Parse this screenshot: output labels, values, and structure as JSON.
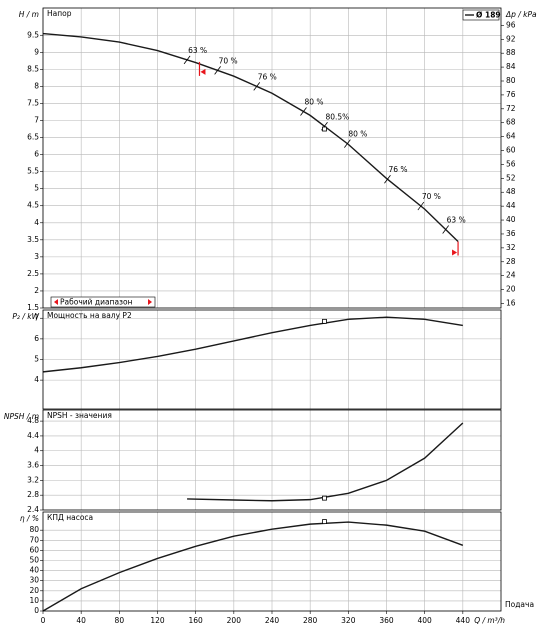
{
  "chart_data": [
    {
      "type": "line",
      "title": "Напор",
      "y_label": "H / m",
      "y2_label": "Δp / kPa",
      "xlim": [
        0,
        480
      ],
      "ylim": [
        1.5,
        10.3
      ],
      "yticks": [
        1.5,
        2,
        2.5,
        3,
        3.5,
        4,
        4.5,
        5,
        5.5,
        6,
        6.5,
        7,
        7.5,
        8,
        8.5,
        9,
        9.5
      ],
      "y2lim": [
        14.7,
        101
      ],
      "y2ticks": [
        16,
        20,
        24,
        28,
        32,
        36,
        40,
        44,
        48,
        52,
        56,
        60,
        64,
        68,
        72,
        76,
        80,
        84,
        88,
        92,
        96
      ],
      "grid": true,
      "legend": "upper right",
      "series": [
        {
          "name": "Ø 189",
          "color": "#1a1a1a",
          "x": [
            0,
            40,
            80,
            120,
            160,
            200,
            240,
            280,
            320,
            360,
            400,
            435
          ],
          "values": [
            9.55,
            9.45,
            9.3,
            9.05,
            8.7,
            8.3,
            7.8,
            7.15,
            6.3,
            5.3,
            4.4,
            3.45
          ]
        }
      ],
      "duty_point": {
        "x": 295,
        "y": 6.75
      },
      "efficiency_marks": [
        {
          "x": 151,
          "label": "63 %"
        },
        {
          "x": 183,
          "label": "70 %"
        },
        {
          "x": 224,
          "label": "76 %"
        },
        {
          "x": 273,
          "label": "80 %"
        },
        {
          "x": 295,
          "label": "80.5%"
        },
        {
          "x": 319,
          "label": "80 %"
        },
        {
          "x": 361,
          "label": "76 %"
        },
        {
          "x": 396,
          "label": "70 %"
        },
        {
          "x": 422,
          "label": "63 %"
        }
      ],
      "operating_range": {
        "label": "Рабочий диапазон",
        "from": 164,
        "to": 435,
        "color": "#e8141b"
      }
    },
    {
      "type": "line",
      "title": "Мощность на валу P2",
      "y_label": "P₂ / kW",
      "xlim": [
        0,
        480
      ],
      "ylim": [
        2.6,
        7.4
      ],
      "yticks": [
        4,
        5,
        6,
        7
      ],
      "grid": true,
      "series": [
        {
          "name": "Ø 189",
          "color": "#1a1a1a",
          "x": [
            0,
            40,
            80,
            120,
            160,
            200,
            240,
            280,
            320,
            360,
            400,
            440
          ],
          "values": [
            4.4,
            4.6,
            4.85,
            5.15,
            5.5,
            5.9,
            6.3,
            6.65,
            6.95,
            7.05,
            6.95,
            6.65
          ]
        }
      ],
      "duty_point": {
        "x": 295,
        "y": 6.85
      }
    },
    {
      "type": "line",
      "title": "NPSH - значения",
      "y_label": "NPSH / m",
      "xlim": [
        0,
        480
      ],
      "ylim": [
        2.4,
        5.1
      ],
      "yticks": [
        2.4,
        2.8,
        3.2,
        3.6,
        4,
        4.4,
        4.8
      ],
      "grid": true,
      "series": [
        {
          "name": "Ø 189",
          "color": "#1a1a1a",
          "x": [
            151,
            200,
            240,
            280,
            320,
            360,
            400,
            440
          ],
          "values": [
            2.7,
            2.67,
            2.65,
            2.68,
            2.85,
            3.2,
            3.8,
            4.75
          ]
        }
      ],
      "duty_point": {
        "x": 295,
        "y": 2.72
      }
    },
    {
      "type": "line",
      "title": "КПД насоса",
      "y_label": "η / %",
      "x_label": "Q / m³/h",
      "x_caption": "Подача",
      "xlim": [
        0,
        480
      ],
      "ylim": [
        0,
        98
      ],
      "yticks": [
        0,
        10,
        20,
        30,
        40,
        50,
        60,
        70,
        80
      ],
      "xticks": [
        0,
        40,
        80,
        120,
        160,
        200,
        240,
        280,
        320,
        360,
        400,
        440
      ],
      "grid": true,
      "series": [
        {
          "name": "Ø 189",
          "color": "#1a1a1a",
          "x": [
            0,
            40,
            80,
            120,
            160,
            200,
            240,
            280,
            320,
            360,
            400,
            440
          ],
          "values": [
            0,
            22,
            38,
            52,
            64,
            74,
            81,
            86,
            88,
            85,
            79,
            65
          ]
        }
      ],
      "duty_point": {
        "x": 295,
        "y": 88.5
      }
    }
  ]
}
